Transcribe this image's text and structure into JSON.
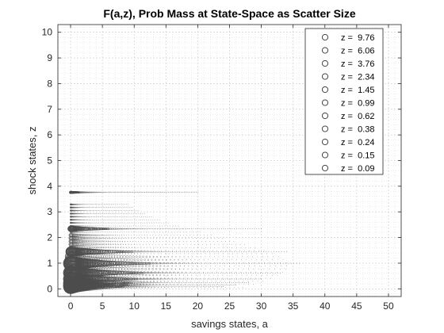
{
  "chart_data": {
    "type": "scatter",
    "title": "F(a,z), Prob Mass at State-Space as Scatter Size",
    "xlabel": "savings states, a",
    "ylabel": "shock states, z",
    "xlim": [
      -2,
      52
    ],
    "ylim": [
      -0.3,
      10.3
    ],
    "xticks": [
      0,
      5,
      10,
      15,
      20,
      25,
      30,
      35,
      40,
      45,
      50
    ],
    "yticks": [
      0,
      1,
      2,
      3,
      4,
      5,
      6,
      7,
      8,
      9,
      10
    ],
    "grid": "on, with minor grid",
    "legend_position": "top-right",
    "marker": "open circle",
    "marker_color": "#4d4d4d",
    "z_levels": [
      0.09,
      0.15,
      0.24,
      0.38,
      0.62,
      0.99,
      1.45,
      2.34,
      3.76,
      6.06,
      9.76
    ],
    "legend_entries": [
      "z =  9.76",
      "z =  6.06",
      "z =  3.76",
      "z =  2.34",
      "z =  1.45",
      "z =  0.99",
      "z =  0.62",
      "z =  0.38",
      "z =  0.24",
      "z =  0.15",
      "z =  0.09"
    ],
    "series": [
      {
        "z": 0.09,
        "a_max": 24
      },
      {
        "z": 0.15,
        "a_max": 26
      },
      {
        "z": 0.24,
        "a_max": 28
      },
      {
        "z": 0.38,
        "a_max": 30
      },
      {
        "z": 0.62,
        "a_max": 33
      },
      {
        "z": 0.99,
        "a_max": 36
      },
      {
        "z": 1.45,
        "a_max": 34
      },
      {
        "z": 2.34,
        "a_max": 30
      },
      {
        "z": 3.76,
        "a_max": 20
      },
      {
        "z": 6.06,
        "a_max": 0
      },
      {
        "z": 9.76,
        "a_max": 0
      }
    ],
    "colors": {
      "marker": "#4d4d4d",
      "axis": "#262626",
      "grid_major": "#e6e6e6",
      "grid_minor": "#f2f2f2",
      "plot_bg": "#ffffff"
    }
  }
}
